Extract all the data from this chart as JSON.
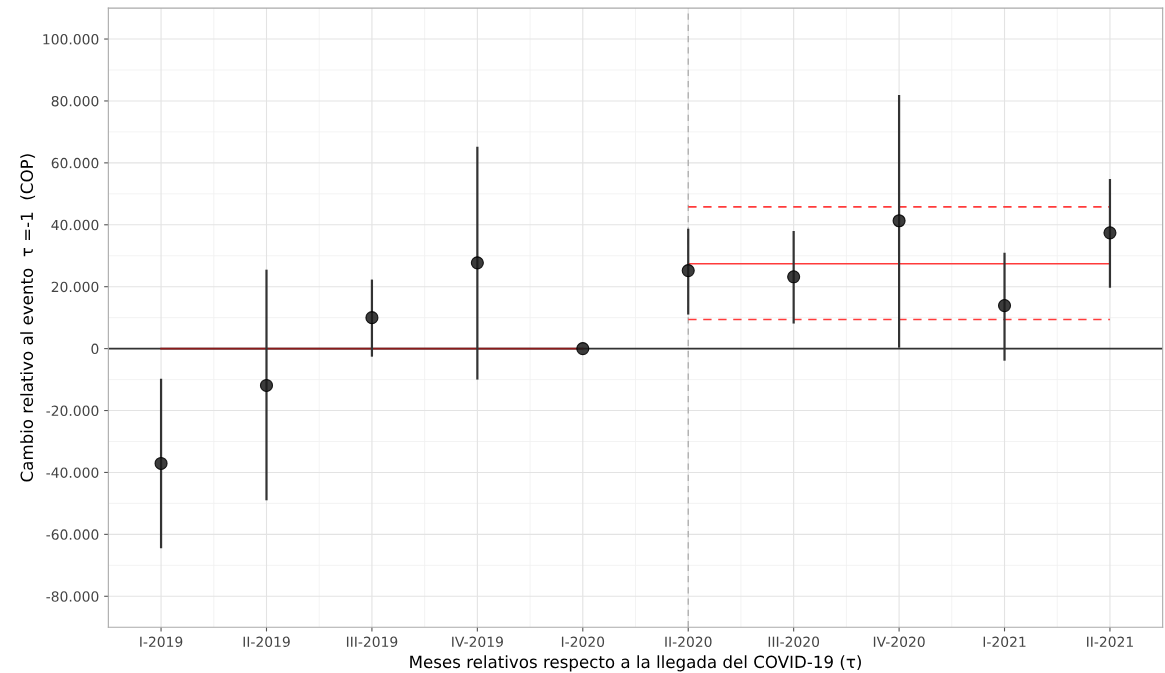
{
  "chart_data": {
    "type": "scatter",
    "xlabel": "Meses relativos respecto a la llegada del COVID-19 (τ)",
    "ylabel": "Cambio relativo al evento  τ =-1  (COP)",
    "categories": [
      "I-2019",
      "II-2019",
      "III-2019",
      "IV-2019",
      "I-2020",
      "II-2020",
      "III-2020",
      "IV-2020",
      "I-2021",
      "II-2021"
    ],
    "series": [
      {
        "color": "#1a1a1a",
        "marker": "circle",
        "values": [
          -37100,
          -11900,
          10000,
          27700,
          0,
          25200,
          23200,
          41300,
          13900,
          37400
        ],
        "errors": [
          [
            -64500,
            -9700
          ],
          [
            -49000,
            25500
          ],
          [
            -2600,
            22300
          ],
          [
            -10000,
            65200
          ],
          null,
          [
            11000,
            38700
          ],
          [
            8100,
            38000
          ],
          [
            300,
            81900
          ],
          [
            -3900,
            31000
          ],
          [
            19700,
            54800
          ]
        ]
      },
      {
        "type": "line",
        "color": "#8b1a1a",
        "line_style": "solid",
        "x": [
          "I-2019",
          "I-2020"
        ],
        "values": [
          0,
          0
        ]
      },
      {
        "type": "line",
        "color": "#ff3b3b",
        "line_style": "solid",
        "x": [
          "II-2020",
          "II-2021"
        ],
        "values": [
          27400,
          27400
        ]
      },
      {
        "type": "line",
        "color": "#ff3b3b",
        "line_style": "dashed",
        "x": [
          "II-2020",
          "II-2021"
        ],
        "values": [
          45800,
          45800
        ]
      },
      {
        "type": "line",
        "color": "#ff3b3b",
        "line_style": "dashed",
        "x": [
          "II-2020",
          "II-2021"
        ],
        "values": [
          9400,
          9400
        ]
      }
    ],
    "ylim": [
      -90000,
      110000
    ],
    "yticks": [
      {
        "value": -80000,
        "label": "-80.000"
      },
      {
        "value": -60000,
        "label": "-60.000"
      },
      {
        "value": -40000,
        "label": "-40.000"
      },
      {
        "value": -20000,
        "label": "-20.000"
      },
      0,
      {
        "value": 20000,
        "label": "20.000"
      },
      {
        "value": 40000,
        "label": "40.000"
      },
      {
        "value": 60000,
        "label": "60.000"
      },
      {
        "value": 80000,
        "label": "80.000"
      },
      {
        "value": 100000,
        "label": "100.000"
      }
    ],
    "ref_lines": [
      {
        "axis": "y",
        "value": 0,
        "color": "#333333",
        "line_style": "solid"
      },
      {
        "axis": "x",
        "value": "II-2020",
        "color": "#aaaaaa",
        "line_style": "dashed"
      }
    ],
    "grid": true
  }
}
